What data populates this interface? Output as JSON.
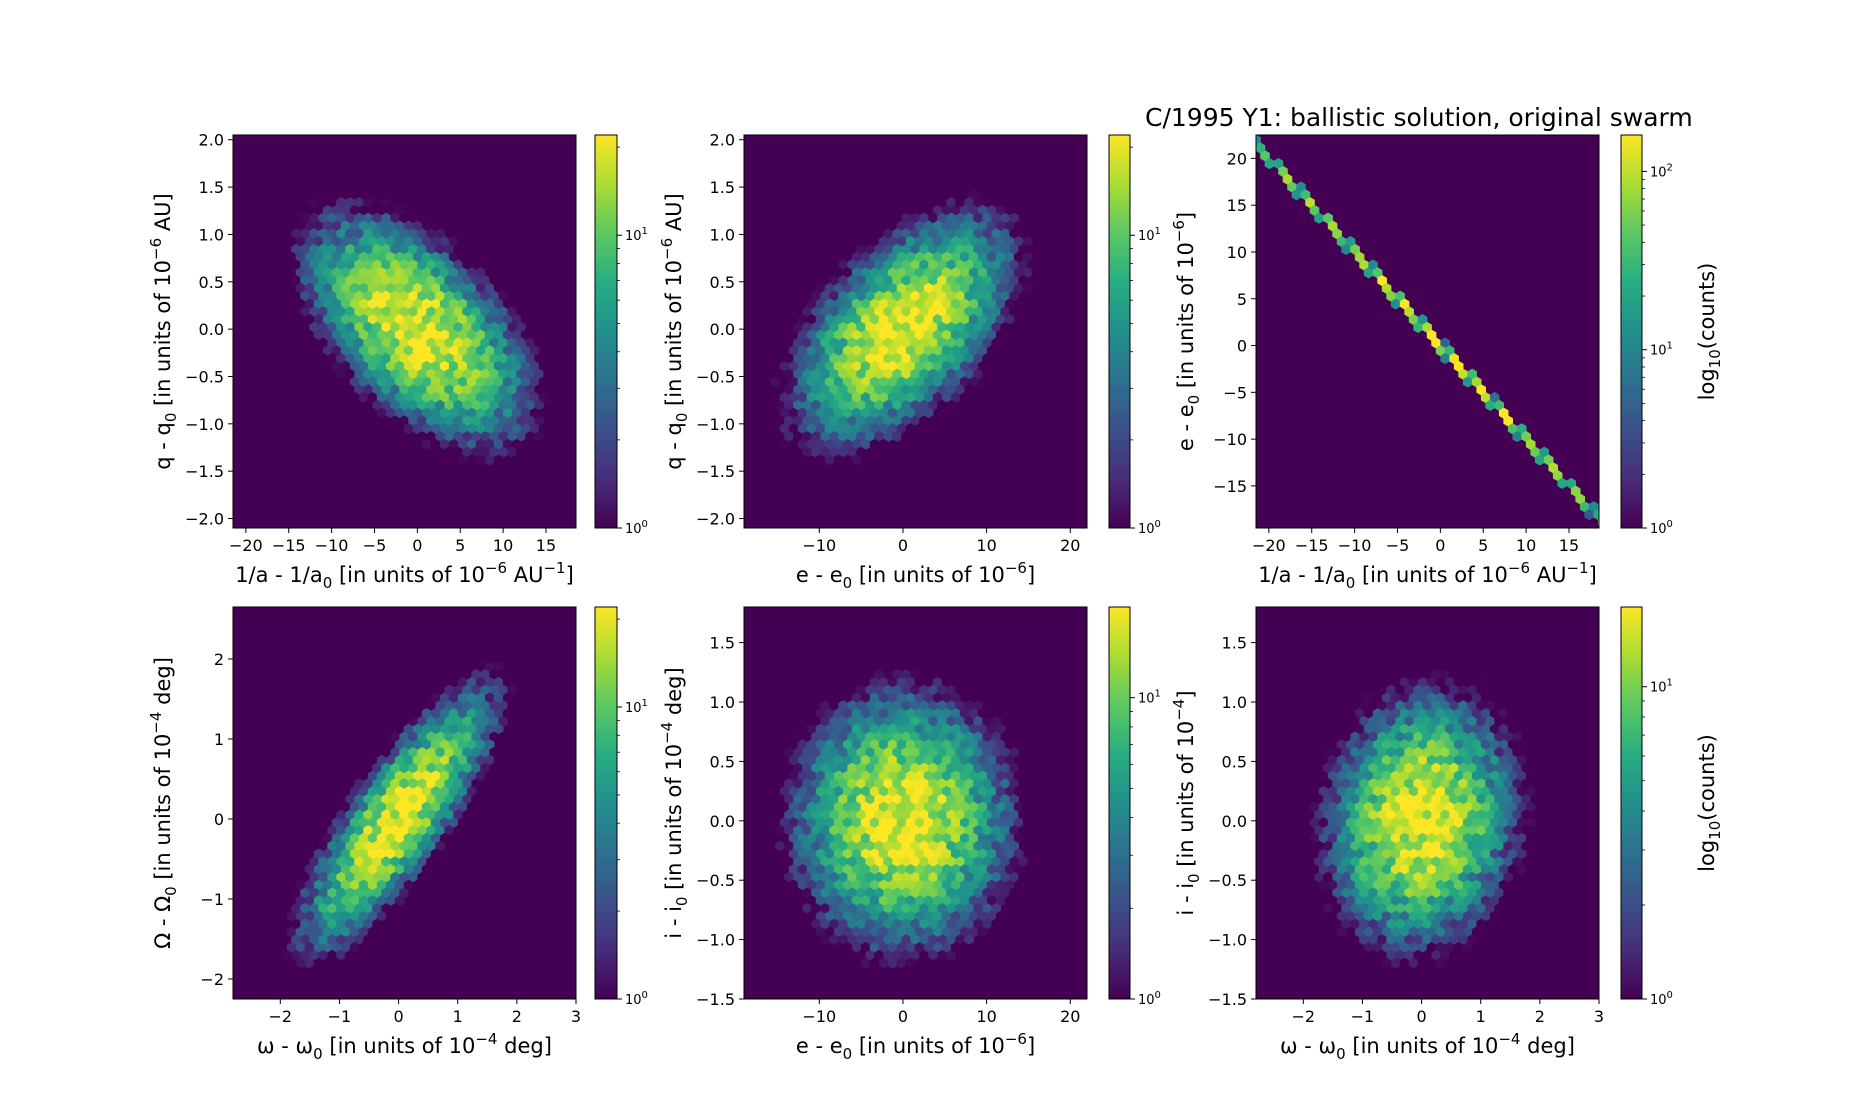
{
  "figure": {
    "title": "C/1995 Y1:  ballistic solution, original swarm"
  },
  "colormap": [
    "#440154",
    "#472c7a",
    "#3b518b",
    "#2c718e",
    "#21908d",
    "#27ad81",
    "#5cc863",
    "#aadc32",
    "#fde725"
  ],
  "chart_data": [
    {
      "type": "heatmap",
      "subtype": "hexbin",
      "xlabel": {
        "base": "1/a - 1/a",
        "sub": "0",
        "mid": " [in units of 10",
        "sup": "−6",
        "tail": " AU",
        "sup2": "−1",
        "end": "]"
      },
      "ylabel": {
        "base": "q - q",
        "sub": "0",
        "mid": " [in units of 10",
        "sup": "−6",
        "tail": " AU]"
      },
      "xlim": [
        -21.5,
        18.5
      ],
      "ylim": [
        -2.1,
        2.05
      ],
      "xticks": [
        -20,
        -15,
        -10,
        -5,
        0,
        5,
        10,
        15
      ],
      "yticks": [
        -2.0,
        -1.5,
        -1.0,
        -0.5,
        0.0,
        0.5,
        1.0,
        1.5,
        2.0
      ],
      "ytick_labels": [
        "−2.0",
        "−1.5",
        "−1.0",
        "−0.5",
        "0.0",
        "0.5",
        "1.0",
        "1.5",
        "2.0"
      ],
      "xtick_labels": [
        "−20",
        "−15",
        "−10",
        "−5",
        "0",
        "5",
        "10",
        "15"
      ],
      "distribution": {
        "mean": [
          0,
          0
        ],
        "std": [
          6.0,
          0.55
        ],
        "corr": -0.55
      },
      "colorbar": {
        "scale": "log",
        "range": [
          1,
          22
        ],
        "ticks": [
          {
            "value": 1,
            "label": "10",
            "sup": "0"
          },
          {
            "value": 10,
            "label": "10",
            "sup": "1"
          }
        ],
        "label": ""
      }
    },
    {
      "type": "heatmap",
      "subtype": "hexbin",
      "xlabel": {
        "base": "e - e",
        "sub": "0",
        "mid": " [in units of 10",
        "sup": "−6",
        "tail": "",
        "sup2": "",
        "end": "]"
      },
      "ylabel": {
        "base": "q - q",
        "sub": "0",
        "mid": " [in units of 10",
        "sup": "−6",
        "tail": " AU]"
      },
      "xlim": [
        -19,
        22
      ],
      "ylim": [
        -2.1,
        2.05
      ],
      "xticks": [
        -10,
        0,
        10,
        20
      ],
      "xtick_labels": [
        "−10",
        "0",
        "10",
        "20"
      ],
      "yticks": [
        -2.0,
        -1.5,
        -1.0,
        -0.5,
        0.0,
        0.5,
        1.0,
        1.5,
        2.0
      ],
      "ytick_labels": [
        "−2.0",
        "−1.5",
        "−1.0",
        "−0.5",
        "0.0",
        "0.5",
        "1.0",
        "1.5",
        "2.0"
      ],
      "distribution": {
        "mean": [
          0,
          0
        ],
        "std": [
          6.0,
          0.55
        ],
        "corr": 0.55
      },
      "colorbar": {
        "scale": "log",
        "range": [
          1,
          22
        ],
        "ticks": [
          {
            "value": 1,
            "label": "10",
            "sup": "0"
          },
          {
            "value": 10,
            "label": "10",
            "sup": "1"
          }
        ],
        "label": ""
      }
    },
    {
      "type": "heatmap",
      "subtype": "hexbin",
      "xlabel": {
        "base": "1/a - 1/a",
        "sub": "0",
        "mid": " [in units of 10",
        "sup": "−6",
        "tail": " AU",
        "sup2": "−1",
        "end": "]"
      },
      "ylabel": {
        "base": "e - e",
        "sub": "0",
        "mid": " [in units of 10",
        "sup": "−6",
        "tail": "]"
      },
      "xlim": [
        -21.5,
        18.5
      ],
      "ylim": [
        -19.5,
        22.5
      ],
      "xticks": [
        -20,
        -15,
        -10,
        -5,
        0,
        5,
        10,
        15
      ],
      "xtick_labels": [
        "−20",
        "−15",
        "−10",
        "−5",
        "0",
        "5",
        "10",
        "15"
      ],
      "yticks": [
        -15,
        -10,
        -5,
        0,
        5,
        10,
        15,
        20
      ],
      "ytick_labels": [
        "−15",
        "−10",
        "−5",
        "0",
        "5",
        "10",
        "15",
        "20"
      ],
      "distribution": {
        "mean": [
          0,
          0
        ],
        "std": [
          6.0,
          6.0
        ],
        "corr": -0.999
      },
      "colorbar": {
        "scale": "log",
        "range": [
          1,
          160
        ],
        "ticks": [
          {
            "value": 1,
            "label": "10",
            "sup": "0"
          },
          {
            "value": 10,
            "label": "10",
            "sup": "1"
          },
          {
            "value": 100,
            "label": "10",
            "sup": "2"
          }
        ],
        "label": "log",
        "label_sub": "10",
        "label_tail": "(counts)"
      }
    },
    {
      "type": "heatmap",
      "subtype": "hexbin",
      "xlabel": {
        "base": "ω - ω",
        "sub": "0",
        "mid": " [in units of 10",
        "sup": "−4",
        "tail": " deg",
        "sup2": "",
        "end": "]"
      },
      "ylabel": {
        "base": "Ω - Ω",
        "sub": "0",
        "mid": " [in units of 10",
        "sup": "−4",
        "tail": " deg]"
      },
      "xlim": [
        -2.8,
        3.0
      ],
      "ylim": [
        -2.25,
        2.65
      ],
      "xticks": [
        -2,
        -1,
        0,
        1,
        2,
        3
      ],
      "xtick_labels": [
        "−2",
        "−1",
        "0",
        "1",
        "2",
        "3"
      ],
      "yticks": [
        -2,
        -1,
        0,
        1,
        2
      ],
      "ytick_labels": [
        "−2",
        "−1",
        "0",
        "1",
        "2"
      ],
      "distribution": {
        "mean": [
          0,
          0
        ],
        "std": [
          0.75,
          0.75
        ],
        "corr": 0.82
      },
      "colorbar": {
        "scale": "log",
        "range": [
          1,
          22
        ],
        "ticks": [
          {
            "value": 1,
            "label": "10",
            "sup": "0"
          },
          {
            "value": 10,
            "label": "10",
            "sup": "1"
          }
        ],
        "label": ""
      }
    },
    {
      "type": "heatmap",
      "subtype": "hexbin",
      "xlabel": {
        "base": "e - e",
        "sub": "0",
        "mid": " [in units of 10",
        "sup": "−6",
        "tail": "",
        "sup2": "",
        "end": "]"
      },
      "ylabel": {
        "base": "i - i",
        "sub": "0",
        "mid": " [in units of 10",
        "sup": "−4",
        "tail": " deg]"
      },
      "xlim": [
        -19,
        22
      ],
      "ylim": [
        -1.5,
        1.8
      ],
      "xticks": [
        -10,
        0,
        10,
        20
      ],
      "xtick_labels": [
        "−10",
        "0",
        "10",
        "20"
      ],
      "yticks": [
        -1.5,
        -1.0,
        -0.5,
        0.0,
        0.5,
        1.0,
        1.5
      ],
      "ytick_labels": [
        "−1.5",
        "−1.0",
        "−0.5",
        "0.0",
        "0.5",
        "1.0",
        "1.5"
      ],
      "distribution": {
        "mean": [
          0,
          0
        ],
        "std": [
          6.0,
          0.5
        ],
        "corr": 0.0
      },
      "colorbar": {
        "scale": "log",
        "range": [
          1,
          20
        ],
        "ticks": [
          {
            "value": 1,
            "label": "10",
            "sup": "0"
          },
          {
            "value": 10,
            "label": "10",
            "sup": "1"
          }
        ],
        "label": ""
      }
    },
    {
      "type": "heatmap",
      "subtype": "hexbin",
      "xlabel": {
        "base": "ω - ω",
        "sub": "0",
        "mid": " [in units of 10",
        "sup": "−4",
        "tail": " deg",
        "sup2": "",
        "end": "]"
      },
      "ylabel": {
        "base": "i - i",
        "sub": "0",
        "mid": " [in units of 10",
        "sup": "−4",
        "tail": "]"
      },
      "xlim": [
        -2.8,
        3.0
      ],
      "ylim": [
        -1.5,
        1.8
      ],
      "xticks": [
        -2,
        -1,
        0,
        1,
        2,
        3
      ],
      "xtick_labels": [
        "−2",
        "−1",
        "0",
        "1",
        "2",
        "3"
      ],
      "yticks": [
        -1.5,
        -1.0,
        -0.5,
        0.0,
        0.5,
        1.0,
        1.5
      ],
      "ytick_labels": [
        "−1.5",
        "−1.0",
        "−0.5",
        "0.0",
        "0.5",
        "1.0",
        "1.5"
      ],
      "distribution": {
        "mean": [
          0,
          0
        ],
        "std": [
          0.75,
          0.5
        ],
        "corr": 0.1
      },
      "colorbar": {
        "scale": "log",
        "range": [
          1,
          18
        ],
        "ticks": [
          {
            "value": 1,
            "label": "10",
            "sup": "0"
          },
          {
            "value": 10,
            "label": "10",
            "sup": "1"
          }
        ],
        "label": "log",
        "label_sub": "10",
        "label_tail": "(counts)"
      }
    }
  ]
}
